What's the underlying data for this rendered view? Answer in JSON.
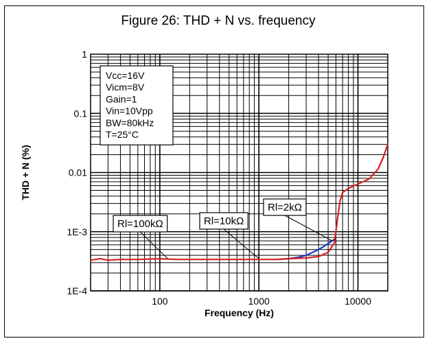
{
  "figure": {
    "title": "Figure 26: THD + N vs. frequency"
  },
  "chart_data": {
    "type": "line",
    "title": "Figure 26: THD + N vs. frequency",
    "xlabel": "Frequency (Hz)",
    "ylabel": "THD + N (%)",
    "x_scale": "log",
    "y_scale": "log",
    "xlim": [
      20,
      20000
    ],
    "ylim": [
      0.0001,
      1
    ],
    "grid": true,
    "x_ticks": [
      {
        "value": 100,
        "label": "100"
      },
      {
        "value": 1000,
        "label": "1000"
      },
      {
        "value": 10000,
        "label": "10000"
      }
    ],
    "y_ticks": [
      {
        "value": 1,
        "label": "1"
      },
      {
        "value": 0.1,
        "label": "0.1"
      },
      {
        "value": 0.01,
        "label": "0.01"
      },
      {
        "value": 0.001,
        "label": "1E-3"
      },
      {
        "value": 0.0001,
        "label": "1E-4"
      }
    ],
    "conditions": [
      "Vcc=16V",
      "Vicm=8V",
      "Gain=1",
      "Vin=10Vpp",
      "BW=80kHz",
      "T=25°C"
    ],
    "series": [
      {
        "color": "#d62020",
        "x": [
          20,
          25,
          30,
          40,
          60,
          100,
          150,
          200,
          400,
          700,
          1000,
          1500,
          2000,
          3000,
          4000,
          5000,
          5800,
          6200,
          6600,
          7000,
          8000,
          10000,
          13000,
          16000,
          18000,
          20000
        ],
        "y": [
          0.00033,
          0.00035,
          0.00033,
          0.00034,
          0.00034,
          0.00035,
          0.00034,
          0.00034,
          0.00034,
          0.00034,
          0.00034,
          0.00034,
          0.00035,
          0.00036,
          0.00038,
          0.00045,
          0.00065,
          0.0016,
          0.0033,
          0.0046,
          0.0054,
          0.0064,
          0.0078,
          0.0115,
          0.018,
          0.03
        ]
      },
      {
        "color": "#1c36c8",
        "x": [
          1500,
          2000,
          2500,
          3000,
          3500,
          4000,
          4500,
          5000,
          5500,
          5800
        ],
        "y": [
          0.00034,
          0.00035,
          0.00037,
          0.0004,
          0.00045,
          0.0005,
          0.00056,
          0.00063,
          0.0007,
          0.00075
        ]
      }
    ],
    "annotations": [
      {
        "label": "Rl=100kΩ",
        "target_x": 120,
        "target_y": 0.00035
      },
      {
        "label": "Rl=10kΩ",
        "target_x": 1000,
        "target_y": 0.00035
      },
      {
        "label": "Rl=2kΩ",
        "target_x": 5500,
        "target_y": 0.0007
      }
    ]
  }
}
